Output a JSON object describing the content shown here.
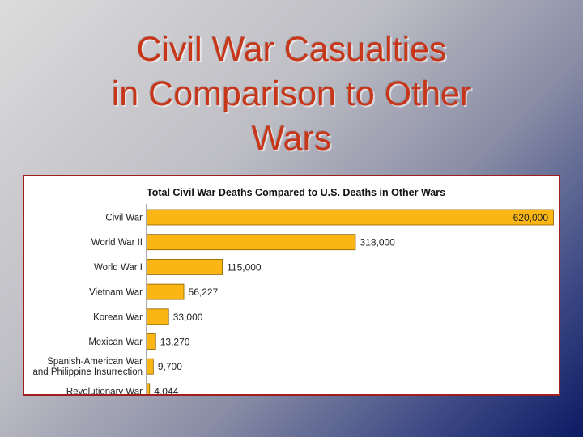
{
  "slide": {
    "title_lines": [
      "Civil War Casualties",
      "in Comparison to Other",
      "Wars"
    ]
  },
  "colors": {
    "bar_fill": "#fbb615",
    "bar_stroke": "#8a6100",
    "frame": "#a21e1e",
    "title": "#c8361a"
  },
  "chart_data": {
    "type": "bar",
    "orientation": "horizontal",
    "title": "Total Civil War Deaths Compared to U.S. Deaths in Other Wars",
    "categories": [
      "Civil War",
      "World War II",
      "World War I",
      "Vietnam War",
      "Korean War",
      "Mexican War",
      "Spanish-American War and Philippine Insurrection",
      "Revolutionary War"
    ],
    "category_label_lines": [
      [
        "Civil War"
      ],
      [
        "World War II"
      ],
      [
        "World War I"
      ],
      [
        "Vietnam War"
      ],
      [
        "Korean War"
      ],
      [
        "Mexican War"
      ],
      [
        "Spanish-American War",
        "and Philippine Insurrection"
      ],
      [
        "Revolutionary War"
      ]
    ],
    "values": [
      620000,
      318000,
      115000,
      56227,
      33000,
      13270,
      9700,
      4044
    ],
    "data_labels": [
      "620,000",
      "318,000",
      "115,000",
      "56,227",
      "33,000",
      "13,270",
      "9,700",
      "4,044"
    ],
    "xlim": [
      0,
      620000
    ],
    "xlabel": "",
    "ylabel": "",
    "grid": false,
    "legend": "none"
  }
}
